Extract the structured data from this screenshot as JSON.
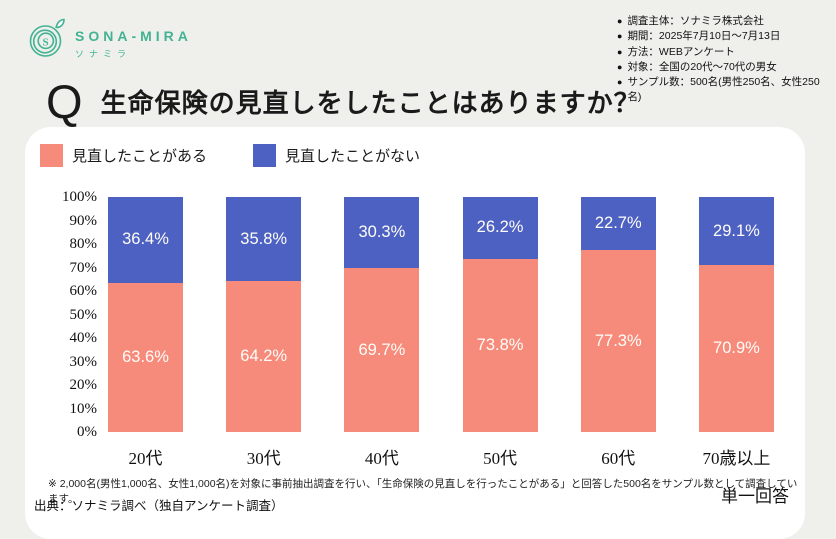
{
  "colors": {
    "background": "#EFEFEC",
    "card": "#FFFFFF",
    "brand_teal": "#43B393",
    "bar_yes": "#F68B7C",
    "bar_no": "#4D61C3"
  },
  "logo": {
    "title": "SONA-MIRA",
    "subtitle": "ソナミラ",
    "icon": "spiral-s-sprout-logo"
  },
  "survey_meta": {
    "bullet": "●",
    "items": [
      "調査主体：ソナミラ株式会社",
      "期間：2025年7月10日～7月13日",
      "方法：WEBアンケート",
      "対象：全国の20代～70代の男女",
      "サンプル数：500名(男性250名、女性250名)"
    ]
  },
  "question": {
    "mark": "Q",
    "text": "生命保険の見直しをしたことはありますか？"
  },
  "chart_data": {
    "type": "bar",
    "stacked": true,
    "orientation": "vertical",
    "title": "生命保険の見直しをしたことはありますか？",
    "categories": [
      "20代",
      "30代",
      "40代",
      "50代",
      "60代",
      "70歳以上"
    ],
    "series": [
      {
        "name": "見直したことがある",
        "color": "#F68B7C",
        "values": [
          63.6,
          64.2,
          69.7,
          73.8,
          77.3,
          70.9
        ]
      },
      {
        "name": "見直したことがない",
        "color": "#4D61C3",
        "values": [
          36.4,
          35.8,
          30.3,
          26.2,
          22.7,
          29.1
        ]
      }
    ],
    "ylim": [
      0,
      100
    ],
    "y_ticks": [
      "100%",
      "90%",
      "80%",
      "70%",
      "60%",
      "50%",
      "40%",
      "30%",
      "20%",
      "10%",
      "0%"
    ],
    "value_suffix": "%",
    "grid": false,
    "legend_position": "top-left"
  },
  "footnotes": {
    "note": "※ 2,000名(男性1,000名、女性1,000名)を対象に事前抽出調査を行い、「生命保険の見直しを行ったことがある」と回答した500名をサンプル数として調査しています。",
    "source": "出典：ソナミラ調べ（独自アンケート調査）",
    "answer_type": "単一回答"
  }
}
